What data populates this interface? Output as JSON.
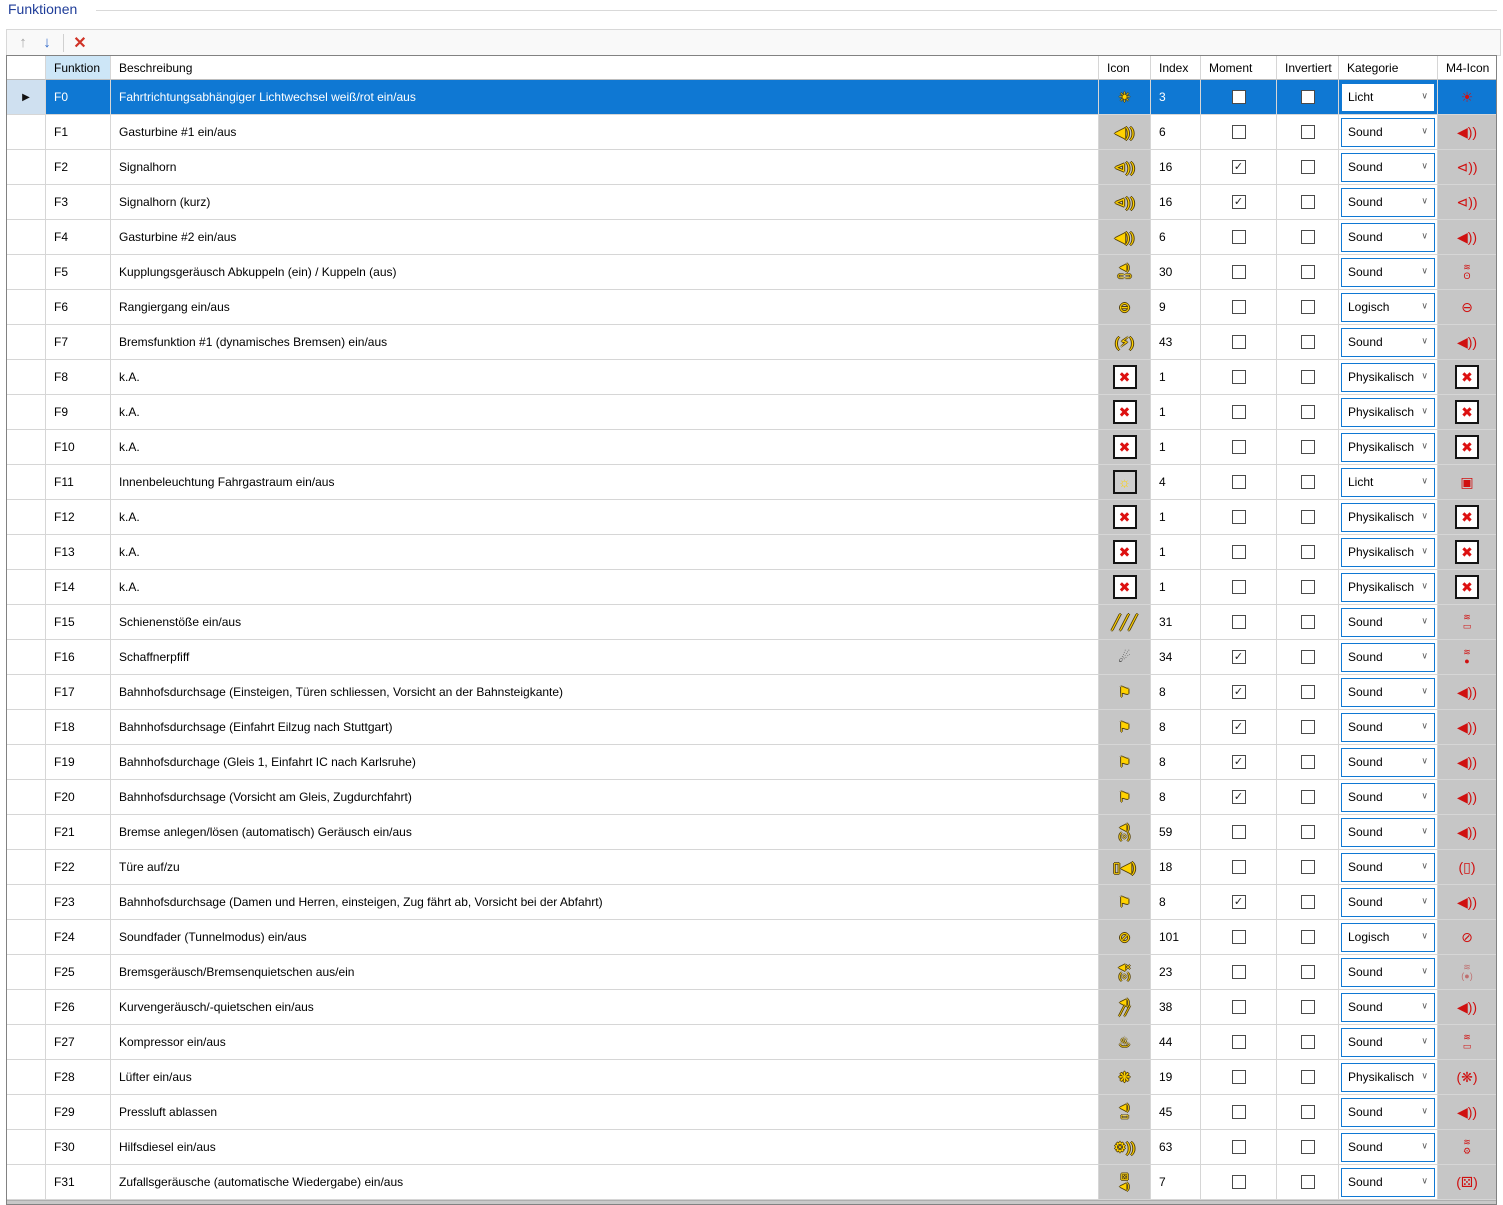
{
  "window": {
    "title": "Funktionen"
  },
  "toolbar": {
    "up_glyph": "↑",
    "down_glyph": "↓",
    "delete_glyph": "✕"
  },
  "columns": {
    "funktion": "Funktion",
    "beschreibung": "Beschreibung",
    "icon": "Icon",
    "index": "Index",
    "moment": "Moment",
    "invertiert": "Invertiert",
    "kategorie": "Kategorie",
    "m4": "M4-Icon"
  },
  "colors": {
    "selection": "#0f78d3",
    "icon_column_bg": "#c6c6c6",
    "combo_border": "#0f78d3",
    "yellow_icon": "#ffd200",
    "red_icon": "#d01010",
    "title_text": "#1f3d99"
  },
  "icon_glyphs": {
    "lamp": {
      "glyph": "☀",
      "color": "#ffd200",
      "outline": true
    },
    "speaker": {
      "glyph": "◀))",
      "color": "#ffd200",
      "outline": true
    },
    "horn": {
      "glyph": "⊲))",
      "color": "#ffd200",
      "outline": true
    },
    "coupler-sound": {
      "glyph": "◀)\n⊂⊃",
      "color": "#ffd200",
      "outline": true
    },
    "turtle": {
      "glyph": "⊖",
      "color": "#ffd200",
      "outline": true
    },
    "brake-sound": {
      "glyph": "(⚡)",
      "color": "#ffd200",
      "outline": true
    },
    "none": {
      "glyph": "✖",
      "color": "#dd1111",
      "boxed": true
    },
    "interior-light": {
      "glyph": "☼",
      "color": "#ffd200",
      "boxed": true,
      "box_bg": "#cfcfcf"
    },
    "rails": {
      "glyph": "╱╱╱",
      "color": "#ffd200",
      "outline": true
    },
    "whistle": {
      "glyph": "☄",
      "color": "#2a2a2a"
    },
    "announcement": {
      "glyph": "⚑",
      "color": "#ffd200",
      "outline": true
    },
    "brake-release-sound": {
      "glyph": "◀)\n(○)",
      "color": "#ffd200",
      "outline": true
    },
    "door-sound": {
      "glyph": "▯◀)",
      "color": "#ffd200",
      "outline": true
    },
    "mute": {
      "glyph": "⊘",
      "color": "#ffd200",
      "outline": true
    },
    "brake-squeal-off": {
      "glyph": "◀×\n(○)",
      "color": "#ffd200",
      "outline": true
    },
    "curve-squeal": {
      "glyph": "◀)\n╱╱",
      "color": "#ffd200",
      "outline": true
    },
    "compressor": {
      "glyph": "♨",
      "color": "#ffd200",
      "outline": true
    },
    "fan": {
      "glyph": "❋",
      "color": "#ffd200",
      "outline": true
    },
    "air-release": {
      "glyph": "◀)\n▭",
      "color": "#ffd200",
      "outline": true
    },
    "aux-diesel": {
      "glyph": "⚙))",
      "color": "#ffd200",
      "outline": true
    },
    "random-sound": {
      "glyph": "⚄\n◀)",
      "color": "#ffd200",
      "outline": true
    },
    "m4-light": {
      "glyph": "☀",
      "color": "#d01010"
    },
    "m4-speaker": {
      "glyph": "◀))",
      "color": "#d01010"
    },
    "m4-horn": {
      "glyph": "⊲))",
      "color": "#d01010"
    },
    "m4-coupler": {
      "glyph": "≋\nʘ",
      "color": "#d01010"
    },
    "m4-turtle": {
      "glyph": "⊖",
      "color": "#d01010"
    },
    "m4-none": {
      "glyph": "✖",
      "color": "#dd1111",
      "boxed": true
    },
    "m4-interior": {
      "glyph": "▣",
      "color": "#d01010"
    },
    "m4-rails": {
      "glyph": "≋\n▭",
      "color": "#d01010"
    },
    "m4-whistle": {
      "glyph": "≋\n●",
      "color": "#d01010"
    },
    "m4-announce": {
      "glyph": "◀))",
      "color": "#d01010"
    },
    "m4-door": {
      "glyph": "(▯)",
      "color": "#d01010"
    },
    "m4-mute": {
      "glyph": "⊘",
      "color": "#d01010"
    },
    "m4-brake-squeal": {
      "glyph": "≋\n(●)",
      "color": "#bf7070"
    },
    "m4-compressor": {
      "glyph": "≋\n▭",
      "color": "#d01010"
    },
    "m4-fan": {
      "glyph": "(❋)",
      "color": "#d01010"
    },
    "m4-diesel": {
      "glyph": "≋\n⚙",
      "color": "#d01010"
    },
    "m4-random": {
      "glyph": "(⚄)",
      "color": "#d01010"
    }
  },
  "rows": [
    {
      "fn": "F0",
      "desc": "Fahrtrichtungsabhängiger Lichtwechsel weiß/rot ein/aus",
      "icon": "lamp",
      "index": "3",
      "moment": false,
      "inv": false,
      "kat": "Licht",
      "m4": "m4-light",
      "selected": true
    },
    {
      "fn": "F1",
      "desc": "Gasturbine #1 ein/aus",
      "icon": "speaker",
      "index": "6",
      "moment": false,
      "inv": false,
      "kat": "Sound",
      "m4": "m4-speaker",
      "selected": false
    },
    {
      "fn": "F2",
      "desc": "Signalhorn",
      "icon": "horn",
      "index": "16",
      "moment": true,
      "inv": false,
      "kat": "Sound",
      "m4": "m4-horn",
      "selected": false
    },
    {
      "fn": "F3",
      "desc": "Signalhorn (kurz)",
      "icon": "horn",
      "index": "16",
      "moment": true,
      "inv": false,
      "kat": "Sound",
      "m4": "m4-horn",
      "selected": false
    },
    {
      "fn": "F4",
      "desc": "Gasturbine #2 ein/aus",
      "icon": "speaker",
      "index": "6",
      "moment": false,
      "inv": false,
      "kat": "Sound",
      "m4": "m4-speaker",
      "selected": false
    },
    {
      "fn": "F5",
      "desc": "Kupplungsgeräusch Abkuppeln (ein) / Kuppeln (aus)",
      "icon": "coupler-sound",
      "index": "30",
      "moment": false,
      "inv": false,
      "kat": "Sound",
      "m4": "m4-coupler",
      "selected": false
    },
    {
      "fn": "F6",
      "desc": "Rangiergang ein/aus",
      "icon": "turtle",
      "index": "9",
      "moment": false,
      "inv": false,
      "kat": "Logisch",
      "m4": "m4-turtle",
      "selected": false
    },
    {
      "fn": "F7",
      "desc": "Bremsfunktion #1 (dynamisches Bremsen) ein/aus",
      "icon": "brake-sound",
      "index": "43",
      "moment": false,
      "inv": false,
      "kat": "Sound",
      "m4": "m4-speaker",
      "selected": false
    },
    {
      "fn": "F8",
      "desc": "k.A.",
      "icon": "none",
      "index": "1",
      "moment": false,
      "inv": false,
      "kat": "Physikalisch",
      "m4": "m4-none",
      "selected": false
    },
    {
      "fn": "F9",
      "desc": "k.A.",
      "icon": "none",
      "index": "1",
      "moment": false,
      "inv": false,
      "kat": "Physikalisch",
      "m4": "m4-none",
      "selected": false
    },
    {
      "fn": "F10",
      "desc": "k.A.",
      "icon": "none",
      "index": "1",
      "moment": false,
      "inv": false,
      "kat": "Physikalisch",
      "m4": "m4-none",
      "selected": false
    },
    {
      "fn": "F11",
      "desc": "Innenbeleuchtung Fahrgastraum ein/aus",
      "icon": "interior-light",
      "index": "4",
      "moment": false,
      "inv": false,
      "kat": "Licht",
      "m4": "m4-interior",
      "selected": false
    },
    {
      "fn": "F12",
      "desc": "k.A.",
      "icon": "none",
      "index": "1",
      "moment": false,
      "inv": false,
      "kat": "Physikalisch",
      "m4": "m4-none",
      "selected": false
    },
    {
      "fn": "F13",
      "desc": "k.A.",
      "icon": "none",
      "index": "1",
      "moment": false,
      "inv": false,
      "kat": "Physikalisch",
      "m4": "m4-none",
      "selected": false
    },
    {
      "fn": "F14",
      "desc": "k.A.",
      "icon": "none",
      "index": "1",
      "moment": false,
      "inv": false,
      "kat": "Physikalisch",
      "m4": "m4-none",
      "selected": false
    },
    {
      "fn": "F15",
      "desc": "Schienenstöße ein/aus",
      "icon": "rails",
      "index": "31",
      "moment": false,
      "inv": false,
      "kat": "Sound",
      "m4": "m4-rails",
      "selected": false
    },
    {
      "fn": "F16",
      "desc": "Schaffnerpfiff",
      "icon": "whistle",
      "index": "34",
      "moment": true,
      "inv": false,
      "kat": "Sound",
      "m4": "m4-whistle",
      "selected": false
    },
    {
      "fn": "F17",
      "desc": "Bahnhofsdurchsage (Einsteigen, Türen schliessen, Vorsicht an der Bahnsteigkante)",
      "icon": "announcement",
      "index": "8",
      "moment": true,
      "inv": false,
      "kat": "Sound",
      "m4": "m4-announce",
      "selected": false
    },
    {
      "fn": "F18",
      "desc": "Bahnhofsdurchsage (Einfahrt Eilzug nach Stuttgart)",
      "icon": "announcement",
      "index": "8",
      "moment": true,
      "inv": false,
      "kat": "Sound",
      "m4": "m4-announce",
      "selected": false
    },
    {
      "fn": "F19",
      "desc": "Bahnhofsdurchage (Gleis 1, Einfahrt IC nach Karlsruhe)",
      "icon": "announcement",
      "index": "8",
      "moment": true,
      "inv": false,
      "kat": "Sound",
      "m4": "m4-announce",
      "selected": false
    },
    {
      "fn": "F20",
      "desc": "Bahnhofsdurchsage (Vorsicht am Gleis, Zugdurchfahrt)",
      "icon": "announcement",
      "index": "8",
      "moment": true,
      "inv": false,
      "kat": "Sound",
      "m4": "m4-announce",
      "selected": false
    },
    {
      "fn": "F21",
      "desc": "Bremse anlegen/lösen (automatisch) Geräusch ein/aus",
      "icon": "brake-release-sound",
      "index": "59",
      "moment": false,
      "inv": false,
      "kat": "Sound",
      "m4": "m4-speaker",
      "selected": false
    },
    {
      "fn": "F22",
      "desc": "Türe auf/zu",
      "icon": "door-sound",
      "index": "18",
      "moment": false,
      "inv": false,
      "kat": "Sound",
      "m4": "m4-door",
      "selected": false
    },
    {
      "fn": "F23",
      "desc": "Bahnhofsdurchsage (Damen und Herren, einsteigen, Zug fährt ab, Vorsicht bei der Abfahrt)",
      "icon": "announcement",
      "index": "8",
      "moment": true,
      "inv": false,
      "kat": "Sound",
      "m4": "m4-announce",
      "selected": false
    },
    {
      "fn": "F24",
      "desc": "Soundfader (Tunnelmodus) ein/aus",
      "icon": "mute",
      "index": "101",
      "moment": false,
      "inv": false,
      "kat": "Logisch",
      "m4": "m4-mute",
      "selected": false
    },
    {
      "fn": "F25",
      "desc": "Bremsgeräusch/Bremsenquietschen aus/ein",
      "icon": "brake-squeal-off",
      "index": "23",
      "moment": false,
      "inv": false,
      "kat": "Sound",
      "m4": "m4-brake-squeal",
      "selected": false
    },
    {
      "fn": "F26",
      "desc": "Kurvengeräusch/-quietschen ein/aus",
      "icon": "curve-squeal",
      "index": "38",
      "moment": false,
      "inv": false,
      "kat": "Sound",
      "m4": "m4-speaker",
      "selected": false
    },
    {
      "fn": "F27",
      "desc": "Kompressor ein/aus",
      "icon": "compressor",
      "index": "44",
      "moment": false,
      "inv": false,
      "kat": "Sound",
      "m4": "m4-compressor",
      "selected": false
    },
    {
      "fn": "F28",
      "desc": "Lüfter ein/aus",
      "icon": "fan",
      "index": "19",
      "moment": false,
      "inv": false,
      "kat": "Physikalisch",
      "m4": "m4-fan",
      "selected": false
    },
    {
      "fn": "F29",
      "desc": "Pressluft ablassen",
      "icon": "air-release",
      "index": "45",
      "moment": false,
      "inv": false,
      "kat": "Sound",
      "m4": "m4-speaker",
      "selected": false
    },
    {
      "fn": "F30",
      "desc": "Hilfsdiesel ein/aus",
      "icon": "aux-diesel",
      "index": "63",
      "moment": false,
      "inv": false,
      "kat": "Sound",
      "m4": "m4-diesel",
      "selected": false
    },
    {
      "fn": "F31",
      "desc": "Zufallsgeräusche (automatische Wiedergabe) ein/aus",
      "icon": "random-sound",
      "index": "7",
      "moment": false,
      "inv": false,
      "kat": "Sound",
      "m4": "m4-random",
      "selected": false
    }
  ]
}
